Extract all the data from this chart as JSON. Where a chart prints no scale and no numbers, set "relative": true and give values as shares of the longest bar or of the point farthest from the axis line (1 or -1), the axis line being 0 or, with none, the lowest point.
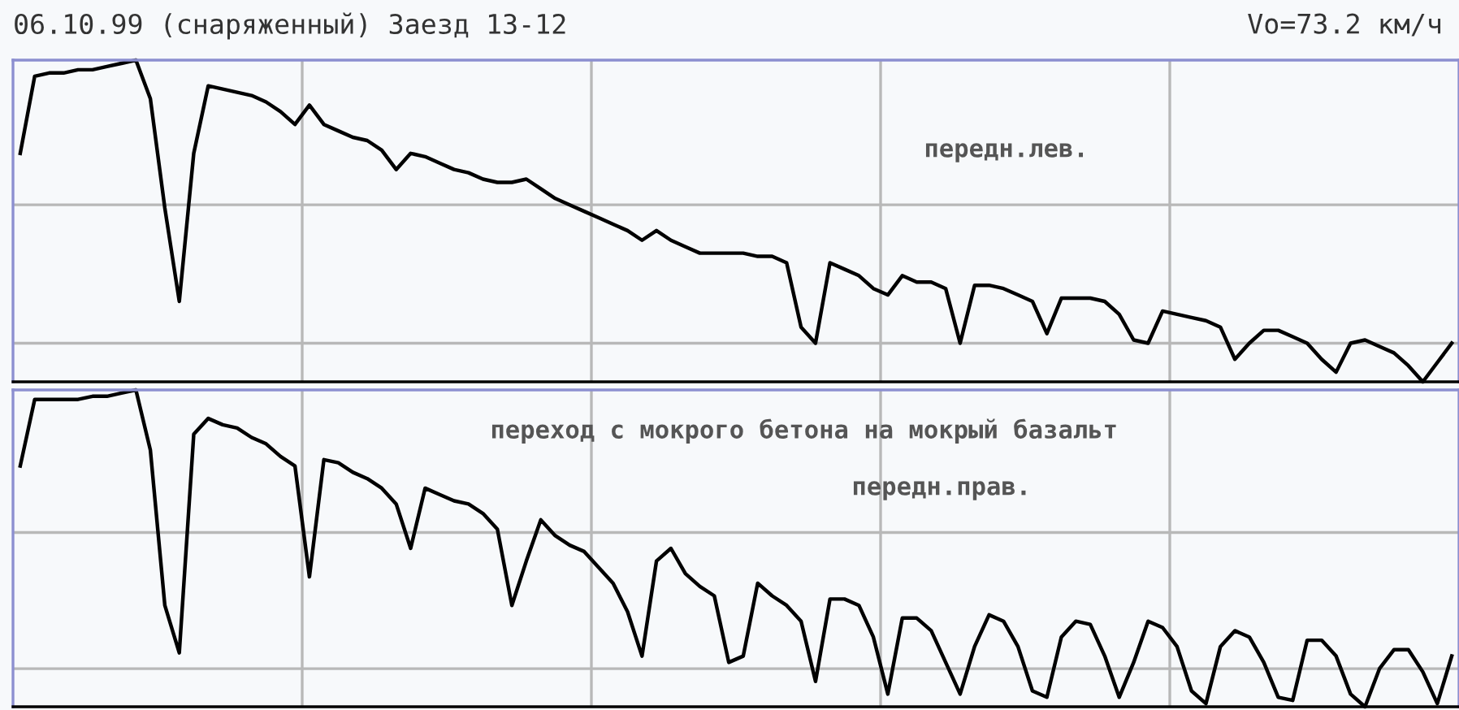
{
  "chart_data": [
    {
      "type": "line",
      "title": "06.10.99 (снаряженный) Заезд 13-12",
      "subtitle": "Vo=73.2 км/ч",
      "relative": true,
      "grid": true,
      "tick_labels": false,
      "legend": false,
      "annotations": [
        "передн.лев."
      ],
      "categories": [
        null,
        null,
        null,
        null,
        null,
        null,
        null,
        null,
        null,
        null,
        null,
        null,
        null,
        null,
        null,
        null,
        null,
        null,
        null,
        null,
        null,
        null,
        null,
        null,
        null,
        null,
        null,
        null,
        null,
        null,
        null,
        null,
        null,
        null,
        null,
        null,
        null,
        null,
        null,
        null,
        null,
        null,
        null,
        null,
        null,
        null,
        null,
        null,
        null,
        null,
        null,
        null,
        null,
        null,
        null,
        null,
        null,
        null,
        null,
        null,
        null,
        null,
        null,
        null,
        null,
        null,
        null,
        null,
        null,
        null,
        null,
        null,
        null,
        null,
        null,
        null,
        null,
        null,
        null,
        null,
        null,
        null,
        null,
        null,
        null,
        null,
        null,
        null,
        null,
        null,
        null,
        null,
        null,
        null,
        null,
        null,
        null,
        null,
        null,
        null
      ],
      "series": [
        {
          "color": "#000000",
          "values": [
            0.71,
            0.95,
            0.96,
            0.96,
            0.97,
            0.97,
            0.98,
            0.99,
            1.0,
            0.88,
            0.54,
            0.25,
            0.71,
            0.92,
            0.91,
            0.9,
            0.89,
            0.87,
            0.84,
            0.8,
            0.86,
            0.8,
            0.78,
            0.76,
            0.75,
            0.72,
            0.66,
            0.71,
            0.7,
            0.68,
            0.66,
            0.65,
            0.63,
            0.62,
            0.62,
            0.63,
            0.6,
            0.57,
            0.55,
            0.53,
            0.51,
            0.49,
            0.47,
            0.44,
            0.47,
            0.44,
            0.42,
            0.4,
            0.4,
            0.4,
            0.4,
            0.39,
            0.39,
            0.37,
            0.17,
            0.12,
            0.37,
            0.35,
            0.33,
            0.29,
            0.27,
            0.33,
            0.31,
            0.31,
            0.29,
            0.12,
            0.3,
            0.3,
            0.29,
            0.27,
            0.25,
            0.15,
            0.26,
            0.26,
            0.26,
            0.25,
            0.21,
            0.13,
            0.12,
            0.22,
            0.21,
            0.2,
            0.19,
            0.17,
            0.07,
            0.12,
            0.16,
            0.16,
            0.14,
            0.12,
            0.07,
            0.03,
            0.12,
            0.13,
            0.11,
            0.09,
            0.05,
            0.0,
            0.06,
            0.12
          ]
        }
      ]
    },
    {
      "type": "line",
      "relative": true,
      "grid": true,
      "tick_labels": false,
      "legend": false,
      "annotations": [
        "переход с мокрого бетона на мокрый базальт",
        "передн.прав."
      ],
      "categories": [
        null,
        null,
        null,
        null,
        null,
        null,
        null,
        null,
        null,
        null,
        null,
        null,
        null,
        null,
        null,
        null,
        null,
        null,
        null,
        null,
        null,
        null,
        null,
        null,
        null,
        null,
        null,
        null,
        null,
        null,
        null,
        null,
        null,
        null,
        null,
        null,
        null,
        null,
        null,
        null,
        null,
        null,
        null,
        null,
        null,
        null,
        null,
        null,
        null,
        null,
        null,
        null,
        null,
        null,
        null,
        null,
        null,
        null,
        null,
        null,
        null,
        null,
        null,
        null,
        null,
        null,
        null,
        null,
        null,
        null,
        null,
        null,
        null,
        null,
        null,
        null,
        null,
        null,
        null,
        null,
        null,
        null,
        null,
        null,
        null,
        null,
        null,
        null,
        null,
        null,
        null,
        null,
        null,
        null,
        null,
        null,
        null,
        null,
        null,
        null
      ],
      "series": [
        {
          "color": "#000000",
          "values": [
            0.76,
            0.97,
            0.97,
            0.97,
            0.97,
            0.98,
            0.98,
            0.99,
            1.0,
            0.81,
            0.32,
            0.17,
            0.86,
            0.91,
            0.89,
            0.88,
            0.85,
            0.83,
            0.79,
            0.76,
            0.41,
            0.78,
            0.77,
            0.74,
            0.72,
            0.69,
            0.64,
            0.5,
            0.69,
            0.67,
            0.65,
            0.64,
            0.61,
            0.56,
            0.32,
            0.46,
            0.59,
            0.54,
            0.51,
            0.49,
            0.44,
            0.39,
            0.3,
            0.16,
            0.46,
            0.5,
            0.42,
            0.38,
            0.35,
            0.14,
            0.16,
            0.39,
            0.35,
            0.32,
            0.27,
            0.08,
            0.34,
            0.34,
            0.32,
            0.22,
            0.04,
            0.28,
            0.28,
            0.24,
            0.14,
            0.04,
            0.19,
            0.29,
            0.27,
            0.19,
            0.05,
            0.03,
            0.22,
            0.27,
            0.26,
            0.16,
            0.03,
            0.14,
            0.27,
            0.25,
            0.19,
            0.05,
            0.01,
            0.19,
            0.24,
            0.22,
            0.14,
            0.03,
            0.02,
            0.21,
            0.21,
            0.16,
            0.04,
            0.0,
            0.12,
            0.18,
            0.18,
            0.11,
            0.01,
            0.16
          ]
        }
      ]
    }
  ]
}
